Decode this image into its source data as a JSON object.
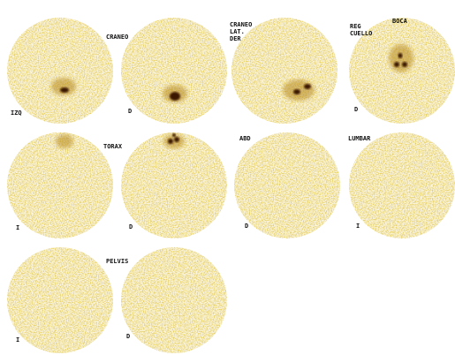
{
  "labels": [
    "CRANEO",
    "IZQ",
    "D",
    "CRANEO",
    "LAT.",
    "DER",
    "BOCA",
    "REG",
    "CUELLO",
    "D",
    "TORAX",
    "I",
    "D",
    "ABD",
    "D",
    "LUMBAR",
    "I",
    "PELVIS",
    "I",
    "D"
  ]
}
